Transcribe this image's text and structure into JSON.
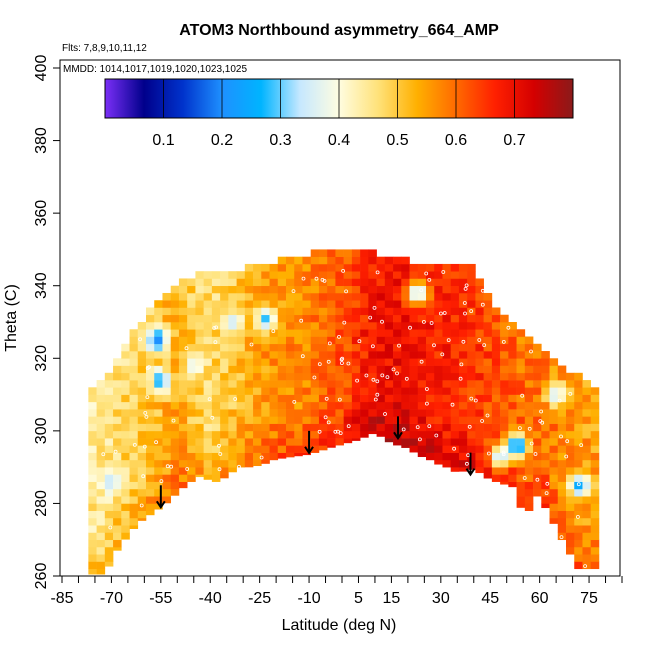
{
  "chart_data": {
    "type": "heatmap",
    "title": "ATOM3 Northbound asymmetry_664_AMP",
    "flights_label": "Flts: 7,8,9,10,11,12",
    "mmdd_label": "MMDD: 1014,1017,1019,1020,1023,1025",
    "xlabel": "Latitude (deg N)",
    "ylabel": "Theta (C)",
    "xlim": [
      -85,
      85
    ],
    "ylim": [
      260,
      400
    ],
    "x_ticks": [
      -85,
      -70,
      -55,
      -40,
      -25,
      -10,
      5,
      15,
      30,
      45,
      60,
      75
    ],
    "x_minor_step": 5,
    "y_ticks": [
      260,
      280,
      300,
      320,
      340,
      360,
      380,
      400
    ],
    "colorbar": {
      "min": 0.0,
      "max": 0.8,
      "ticks": [
        0.1,
        0.2,
        0.3,
        0.4,
        0.5,
        0.6,
        0.7
      ],
      "colors": [
        "#7b2ff7",
        "#00008b",
        "#0033cc",
        "#1e90ff",
        "#00b4ff",
        "#c6e8ff",
        "#fffde0",
        "#ffe27a",
        "#ffb000",
        "#ff6a00",
        "#ff2000",
        "#d40000",
        "#8b1a1a"
      ]
    },
    "coverage": {
      "bottom": [
        [
          -72,
          261
        ],
        [
          -68,
          268
        ],
        [
          -62,
          275
        ],
        [
          -54,
          280
        ],
        [
          -48,
          285
        ],
        [
          -43,
          288
        ],
        [
          -38,
          286
        ],
        [
          -32,
          290
        ],
        [
          -25,
          291
        ],
        [
          -18,
          293
        ],
        [
          -10,
          294
        ],
        [
          -3,
          296
        ],
        [
          5,
          298
        ],
        [
          10,
          300
        ],
        [
          15,
          297
        ],
        [
          19,
          296
        ],
        [
          25,
          293
        ],
        [
          30,
          291
        ],
        [
          35,
          289
        ],
        [
          40,
          290
        ],
        [
          45,
          287
        ],
        [
          52,
          285
        ],
        [
          56,
          275
        ],
        [
          58,
          284
        ],
        [
          62,
          279
        ],
        [
          67,
          270
        ],
        [
          72,
          262
        ]
      ],
      "top": [
        [
          -75,
          311
        ],
        [
          -70,
          316
        ],
        [
          -65,
          324
        ],
        [
          -60,
          331
        ],
        [
          -55,
          336
        ],
        [
          -50,
          340
        ],
        [
          -40,
          343
        ],
        [
          -30,
          344
        ],
        [
          -20,
          346
        ],
        [
          -10,
          348
        ],
        [
          0,
          349
        ],
        [
          10,
          348
        ],
        [
          20,
          346
        ],
        [
          30,
          345
        ],
        [
          40,
          344
        ],
        [
          45,
          335
        ],
        [
          50,
          331
        ],
        [
          55,
          326
        ],
        [
          60,
          322
        ],
        [
          65,
          318
        ],
        [
          70,
          315
        ],
        [
          78,
          311
        ]
      ],
      "left_lat": -77,
      "right_lat": 78
    },
    "zones": [
      {
        "lat": -73,
        "value": 0.45
      },
      {
        "lat": -66,
        "value": 0.48
      },
      {
        "lat": -60,
        "value": 0.5
      },
      {
        "lat": -55,
        "value": 0.52
      },
      {
        "lat": -50,
        "value": 0.55
      },
      {
        "lat": -45,
        "value": 0.5
      },
      {
        "lat": -40,
        "value": 0.48
      },
      {
        "lat": -35,
        "value": 0.5
      },
      {
        "lat": -30,
        "value": 0.52
      },
      {
        "lat": -25,
        "value": 0.55
      },
      {
        "lat": -20,
        "value": 0.56
      },
      {
        "lat": -15,
        "value": 0.57
      },
      {
        "lat": -10,
        "value": 0.58
      },
      {
        "lat": -5,
        "value": 0.6
      },
      {
        "lat": 0,
        "value": 0.62
      },
      {
        "lat": 5,
        "value": 0.66
      },
      {
        "lat": 10,
        "value": 0.69
      },
      {
        "lat": 15,
        "value": 0.7
      },
      {
        "lat": 20,
        "value": 0.69
      },
      {
        "lat": 25,
        "value": 0.68
      },
      {
        "lat": 30,
        "value": 0.67
      },
      {
        "lat": 35,
        "value": 0.66
      },
      {
        "lat": 40,
        "value": 0.65
      },
      {
        "lat": 45,
        "value": 0.63
      },
      {
        "lat": 50,
        "value": 0.62
      },
      {
        "lat": 55,
        "value": 0.6
      },
      {
        "lat": 60,
        "value": 0.6
      },
      {
        "lat": 65,
        "value": 0.58
      },
      {
        "lat": 70,
        "value": 0.56
      },
      {
        "lat": 75,
        "value": 0.55
      }
    ],
    "low_patches": [
      {
        "lat": -56,
        "theta": 325,
        "value": 0.2
      },
      {
        "lat": -55,
        "theta": 314,
        "value": 0.25
      },
      {
        "lat": -70,
        "theta": 286,
        "value": 0.33
      },
      {
        "lat": -33,
        "theta": 330,
        "value": 0.34
      },
      {
        "lat": -23,
        "theta": 331,
        "value": 0.28
      },
      {
        "lat": -45,
        "theta": 318,
        "value": 0.36
      },
      {
        "lat": 23,
        "theta": 338,
        "value": 0.3
      },
      {
        "lat": 48,
        "theta": 293,
        "value": 0.33
      },
      {
        "lat": 53,
        "theta": 296,
        "value": 0.2
      },
      {
        "lat": 72,
        "theta": 285,
        "value": 0.25
      },
      {
        "lat": 65,
        "theta": 310,
        "value": 0.34
      }
    ],
    "tropopause_arrows": [
      {
        "lat": -55,
        "theta": 285
      },
      {
        "lat": -10,
        "theta": 300
      },
      {
        "lat": 17,
        "theta": 304
      },
      {
        "lat": 39,
        "theta": 294
      }
    ]
  }
}
